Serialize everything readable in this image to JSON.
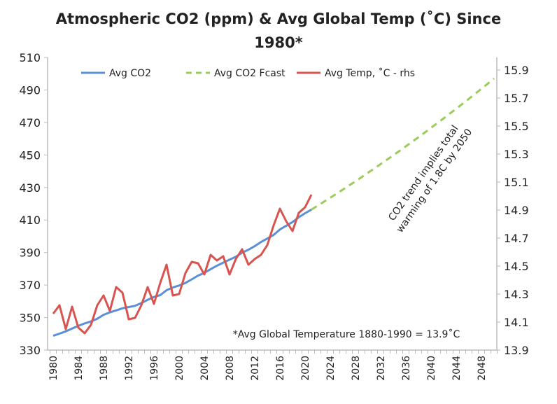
{
  "chart_data": {
    "type": "line",
    "title_lines": [
      "Atmospheric CO2 (ppm) & Avg Global Temp (˚C) Since",
      "1980*"
    ],
    "x_start": 1980,
    "x_end": 2050,
    "x_tick_labels": [
      "1980",
      "1984",
      "1988",
      "1992",
      "1996",
      "2000",
      "2004",
      "2008",
      "2012",
      "2016",
      "2020",
      "2024",
      "2028",
      "2032",
      "2036",
      "2040",
      "2044",
      "2048"
    ],
    "y_left": {
      "range": [
        330,
        510
      ],
      "ticks": [
        "330",
        "350",
        "370",
        "390",
        "410",
        "430",
        "450",
        "470",
        "490",
        "510"
      ]
    },
    "y_right": {
      "range": [
        13.9,
        15.99
      ],
      "ticks": [
        "13.9",
        "14.1",
        "14.3",
        "14.5",
        "14.7",
        "14.9",
        "15.1",
        "15.3",
        "15.5",
        "15.7",
        "15.9"
      ]
    },
    "legend_position": "top",
    "grid": false,
    "series": [
      {
        "name": "Avg CO2",
        "axis": "left",
        "color": "#5b8fd6",
        "style": "solid",
        "x_start": 1980,
        "values": [
          338.8,
          340.1,
          341.5,
          343.2,
          344.9,
          346.4,
          347.6,
          349.3,
          351.7,
          353.2,
          354.4,
          355.7,
          356.5,
          357.2,
          358.9,
          360.9,
          362.7,
          363.8,
          366.8,
          368.5,
          369.7,
          371.3,
          373.5,
          375.8,
          377.5,
          379.8,
          381.9,
          383.8,
          385.6,
          387.4,
          389.9,
          391.7,
          393.9,
          396.5,
          398.6,
          400.8,
          404.2,
          406.5,
          408.7,
          411.7,
          414.2,
          416.4
        ]
      },
      {
        "name": "Avg CO2 Fcast",
        "axis": "left",
        "color": "#9bcc5a",
        "style": "dashed",
        "x_start": 2021,
        "values": [
          416.4,
          418.8,
          421.3,
          423.7,
          426.2,
          428.7,
          431.3,
          433.8,
          436.4,
          439.1,
          441.7,
          444.4,
          447.1,
          449.8,
          452.5,
          455.3,
          458.1,
          460.9,
          463.8,
          466.7,
          469.6,
          472.5,
          475.5,
          478.4,
          481.5,
          484.5,
          487.6,
          490.7,
          493.8,
          497.0
        ]
      },
      {
        "name": "Avg Temp, ˚C - rhs",
        "axis": "right",
        "color": "#d9534f",
        "style": "solid",
        "x_start": 1980,
        "values": [
          14.16,
          14.22,
          14.05,
          14.21,
          14.06,
          14.02,
          14.08,
          14.22,
          14.29,
          14.18,
          14.35,
          14.31,
          14.12,
          14.13,
          14.22,
          14.35,
          14.23,
          14.38,
          14.51,
          14.29,
          14.3,
          14.45,
          14.53,
          14.52,
          14.44,
          14.58,
          14.54,
          14.57,
          14.44,
          14.55,
          14.62,
          14.51,
          14.55,
          14.58,
          14.65,
          14.79,
          14.91,
          14.82,
          14.75,
          14.88,
          14.92,
          15.01
        ]
      }
    ],
    "annotations": {
      "trend_lines": [
        "CO2 trend implies total",
        "warming of 1.8C by 2050"
      ],
      "footnote": "*Avg Global Temperature 1880-1990 = 13.9˚C"
    }
  }
}
